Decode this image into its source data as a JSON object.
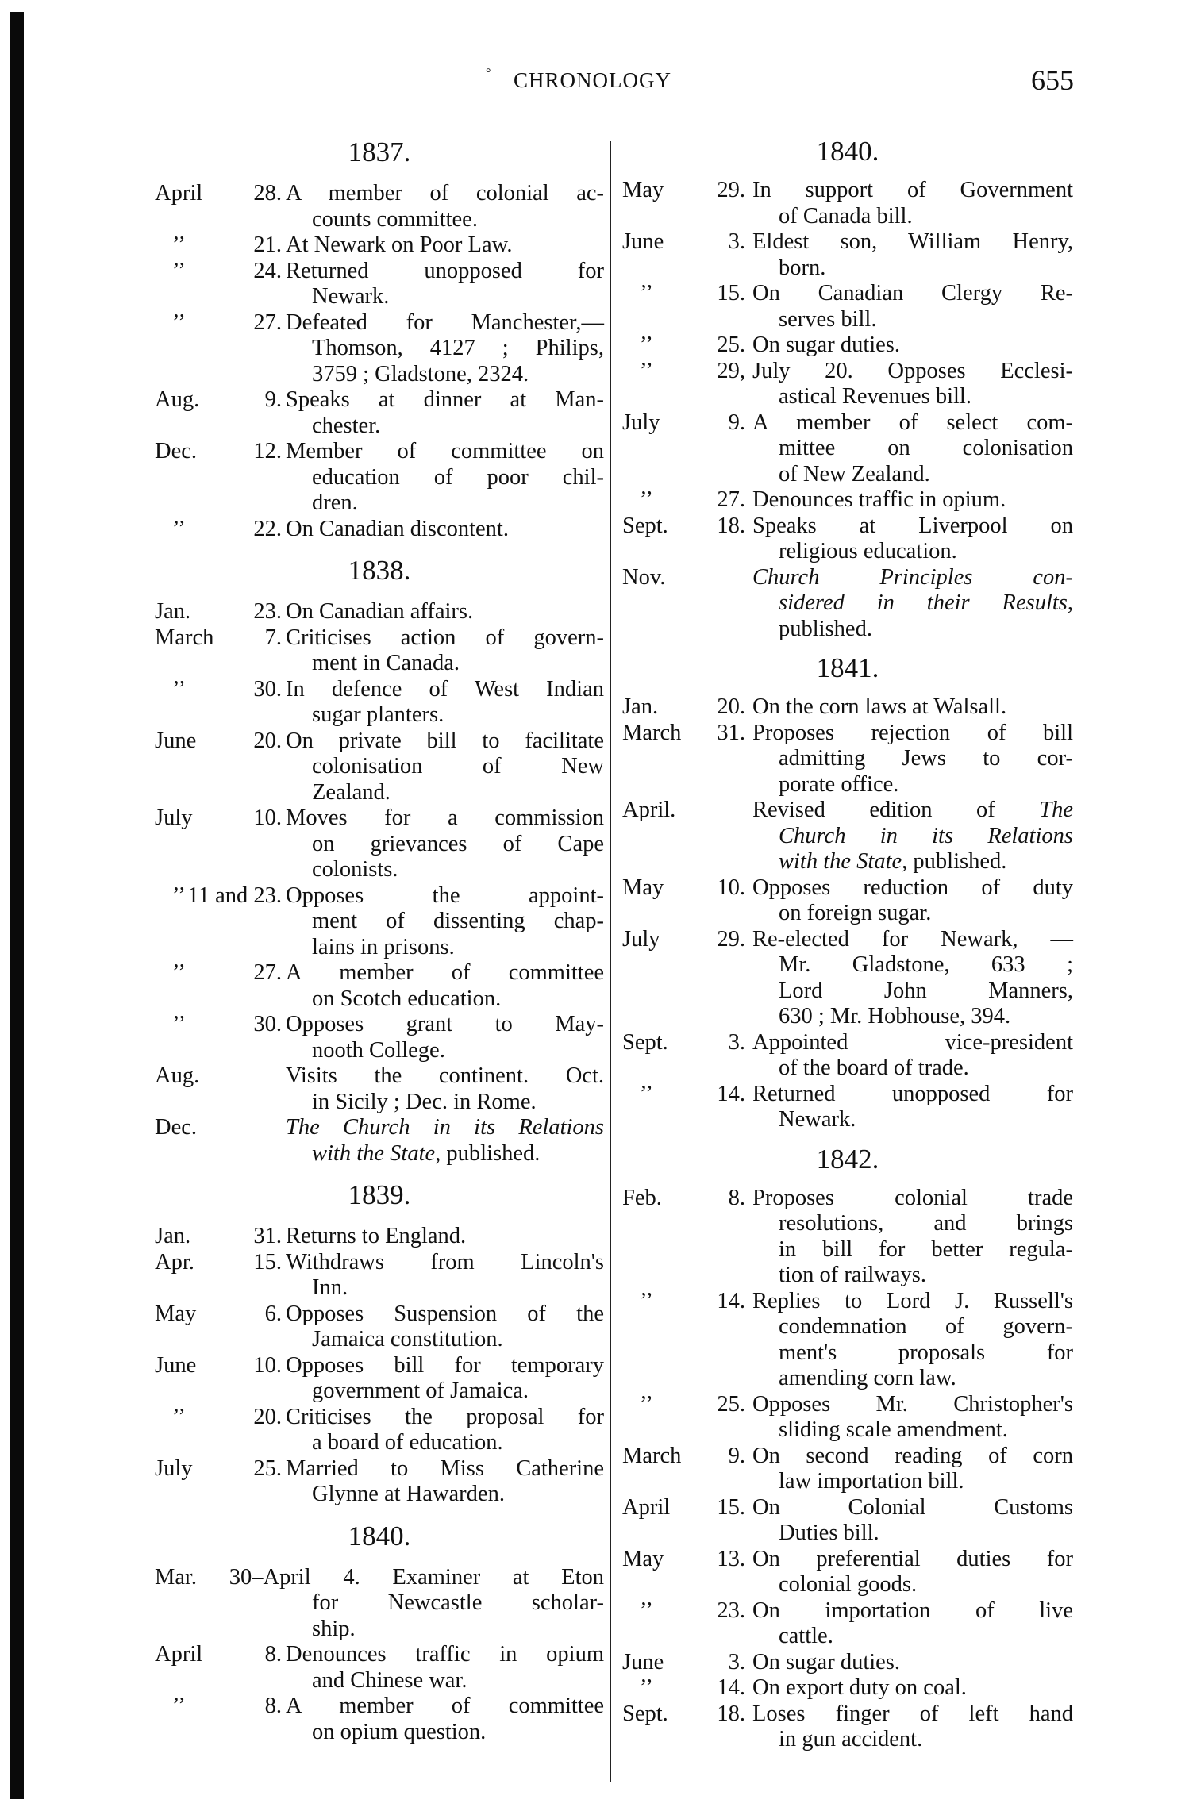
{
  "header": {
    "title": "CHRONOLOGY",
    "page_number": "655",
    "mark": "°"
  },
  "columns": [
    {
      "sections": [
        {
          "year": "1837.",
          "entries": [
            {
              "month": "April",
              "day": "28.",
              "lines": [
                "A member of colonial ac-",
                "counts committee."
              ]
            },
            {
              "month": "’’",
              "day": "21.",
              "lines": [
                "At Newark on Poor Law."
              ]
            },
            {
              "month": "’’",
              "day": "24.",
              "lines": [
                "Returned unopposed for",
                "Newark."
              ]
            },
            {
              "month": "’’",
              "day": "27.",
              "lines": [
                "Defeated for Manchester,—",
                "Thomson, 4127 ; Philips,",
                "3759 ; Gladstone, 2324."
              ]
            },
            {
              "month": "Aug.",
              "day": "9.",
              "lines": [
                "Speaks at dinner at Man-",
                "chester."
              ]
            },
            {
              "month": "Dec.",
              "day": "12.",
              "lines": [
                "Member of committee on",
                "education of poor chil-",
                "dren."
              ]
            },
            {
              "month": "’’",
              "day": "22.",
              "lines": [
                "On Canadian discontent."
              ]
            }
          ]
        },
        {
          "year": "1838.",
          "entries": [
            {
              "month": "Jan.",
              "day": "23.",
              "lines": [
                "On Canadian affairs."
              ]
            },
            {
              "month": "March",
              "day": "7.",
              "lines": [
                "Criticises action of govern-",
                "ment in Canada."
              ]
            },
            {
              "month": "’’",
              "day": "30.",
              "lines": [
                "In defence of West Indian",
                "sugar planters."
              ]
            },
            {
              "month": "June",
              "day": "20.",
              "lines": [
                "On private bill to facilitate",
                "colonisation of New",
                "Zealand."
              ]
            },
            {
              "month": "July",
              "day": "10.",
              "lines": [
                "Moves for a commission",
                "on grievances of Cape",
                "colonists."
              ]
            },
            {
              "month": "’’",
              "day": "11 and 23.",
              "lines": [
                "Opposes the appoint-",
                "ment of dissenting chap-",
                "lains in prisons."
              ]
            },
            {
              "month": "’’",
              "day": "27.",
              "lines": [
                "A member of committee",
                "on Scotch education."
              ]
            },
            {
              "month": "’’",
              "day": "30.",
              "lines": [
                "Opposes grant to May-",
                "nooth College."
              ]
            },
            {
              "month": "Aug.",
              "day": "",
              "lines": [
                "Visits the continent. Oct.",
                "in Sicily ; Dec. in Rome."
              ]
            },
            {
              "month": "Dec.",
              "day": "",
              "lines": [
                [
                  [
                    "The Church in its Relations",
                    true
                  ]
                ],
                [
                  [
                    "with the State",
                    true
                  ],
                  [
                    ", published.",
                    false
                  ]
                ]
              ]
            }
          ]
        },
        {
          "year": "1839.",
          "entries": [
            {
              "month": "Jan.",
              "day": "31.",
              "lines": [
                "Returns to England."
              ]
            },
            {
              "month": "Apr.",
              "day": "15.",
              "lines": [
                "Withdraws from Lincoln's",
                "Inn."
              ]
            },
            {
              "month": "May",
              "day": "6.",
              "lines": [
                "Opposes Suspension of the",
                "Jamaica constitution."
              ]
            },
            {
              "month": "June",
              "day": "10.",
              "lines": [
                "Opposes bill for temporary",
                "government of Jamaica."
              ]
            },
            {
              "month": "’’",
              "day": "20.",
              "lines": [
                "Criticises the proposal for",
                "a board of education."
              ]
            },
            {
              "month": "July",
              "day": "25.",
              "lines": [
                "Married to Miss Catherine",
                "Glynne at Hawarden."
              ]
            }
          ]
        },
        {
          "year": "1840.",
          "entries": [
            {
              "month": "Mar. 30–April 4.",
              "day": "",
              "lead": true,
              "lines": [
                "Examiner at Eton",
                "for Newcastle scholar-",
                "ship."
              ]
            },
            {
              "month": "April",
              "day": "8.",
              "lines": [
                "Denounces traffic in opium",
                "and Chinese war."
              ]
            },
            {
              "month": "’’",
              "day": "8.",
              "lines": [
                "A member of committee",
                "on opium question."
              ]
            }
          ]
        }
      ]
    },
    {
      "sections": [
        {
          "year": "1840.",
          "entries": [
            {
              "month": "May",
              "day": "29.",
              "lines": [
                "In support of Government",
                "of Canada bill."
              ]
            },
            {
              "month": "June",
              "day": "3.",
              "lines": [
                "Eldest son, William Henry,",
                "born."
              ]
            },
            {
              "month": "’’",
              "day": "15.",
              "lines": [
                "On Canadian Clergy Re-",
                "serves bill."
              ]
            },
            {
              "month": "’’",
              "day": "25.",
              "lines": [
                "On sugar duties."
              ]
            },
            {
              "month": "’’",
              "day": "29,",
              "lines": [
                "July 20.  Opposes Ecclesi-",
                "astical Revenues bill."
              ]
            },
            {
              "month": "July",
              "day": "9.",
              "lines": [
                "A member of select com-",
                "mittee on colonisation",
                "of New Zealand."
              ]
            },
            {
              "month": "’’",
              "day": "27.",
              "lines": [
                "Denounces traffic in opium."
              ]
            },
            {
              "month": "Sept.",
              "day": "18.",
              "lines": [
                "Speaks at Liverpool on",
                "religious education."
              ]
            },
            {
              "month": "Nov.",
              "day": "",
              "lines": [
                [
                  [
                    "Church Principles con-",
                    true
                  ]
                ],
                [
                  [
                    "sidered in their Results",
                    true
                  ],
                  [
                    ",",
                    false
                  ]
                ],
                "published."
              ]
            }
          ]
        },
        {
          "year": "1841.",
          "entries": [
            {
              "month": "Jan.",
              "day": "20.",
              "lines": [
                "On the corn laws at Walsall."
              ]
            },
            {
              "month": "March",
              "day": "31.",
              "lines": [
                "Proposes rejection of bill",
                "admitting Jews to cor-",
                "porate office."
              ]
            },
            {
              "month": "April.",
              "day": "",
              "lines": [
                [
                  [
                    "Revised edition of ",
                    false
                  ],
                  [
                    "The",
                    true
                  ]
                ],
                [
                  [
                    "Church in its Relations",
                    true
                  ]
                ],
                [
                  [
                    "with the State",
                    true
                  ],
                  [
                    ", published.",
                    false
                  ]
                ]
              ]
            },
            {
              "month": "May",
              "day": "10.",
              "lines": [
                "Opposes reduction of duty",
                "on foreign sugar."
              ]
            },
            {
              "month": "July",
              "day": "29.",
              "lines": [
                "Re-elected for Newark, —",
                "Mr. Gladstone, 633 ;",
                "Lord John Manners,",
                "630 ; Mr. Hobhouse, 394."
              ]
            },
            {
              "month": "Sept.",
              "day": "3.",
              "lines": [
                "Appointed vice-president",
                "of the board of trade."
              ]
            },
            {
              "month": "’’",
              "day": "14.",
              "lines": [
                "Returned unopposed for",
                "Newark."
              ]
            }
          ]
        },
        {
          "year": "1842.",
          "entries": [
            {
              "month": "Feb.",
              "day": "8.",
              "lines": [
                "Proposes colonial trade",
                "resolutions, and brings",
                "in bill for better regula-",
                "tion of railways."
              ]
            },
            {
              "month": "’’",
              "day": "14.",
              "lines": [
                "Replies to Lord J. Russell's",
                "condemnation of govern-",
                "ment's proposals for",
                "amending corn law."
              ]
            },
            {
              "month": "’’",
              "day": "25.",
              "lines": [
                "Opposes Mr. Christopher's",
                "sliding scale amendment."
              ]
            },
            {
              "month": "March",
              "day": "9.",
              "lines": [
                "On second reading of corn",
                "law importation bill."
              ]
            },
            {
              "month": "April",
              "day": "15.",
              "lines": [
                "On Colonial Customs",
                "Duties bill."
              ]
            },
            {
              "month": "May",
              "day": "13.",
              "lines": [
                "On preferential duties for",
                "colonial goods."
              ]
            },
            {
              "month": "’’",
              "day": "23.",
              "lines": [
                "On importation of live",
                "cattle."
              ]
            },
            {
              "month": "June",
              "day": "3.",
              "lines": [
                "On sugar duties."
              ]
            },
            {
              "month": "’’",
              "day": "14.",
              "lines": [
                "On export duty on coal."
              ]
            },
            {
              "month": "Sept.",
              "day": "18.",
              "lines": [
                "Loses finger of left hand",
                "in gun accident."
              ]
            }
          ]
        }
      ]
    }
  ]
}
